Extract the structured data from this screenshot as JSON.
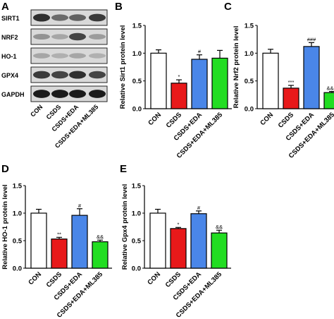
{
  "panel_letters": [
    "A",
    "B",
    "C",
    "D",
    "E"
  ],
  "blot": {
    "labels": [
      "SIRT1",
      "NRF2",
      "HO-1",
      "GPX4",
      "GAPDH"
    ],
    "lanes": [
      "CON",
      "CSDS",
      "CSDS+EDA",
      "CSDS+EDA+ML385"
    ]
  },
  "colors": {
    "CON": "#ffffff",
    "CSDS": "#e8191a",
    "CSDS+EDA": "#4a86e8",
    "CSDS+EDA+ML385": "#22dd22"
  },
  "chart_data": [
    {
      "panel": "B",
      "type": "bar",
      "categories": [
        "CON",
        "CSDS",
        "CSDS+EDA",
        "CSDS+EDA+ML385"
      ],
      "values": [
        1.0,
        0.46,
        0.89,
        0.91
      ],
      "errors": [
        0.06,
        0.06,
        0.08,
        0.14
      ],
      "annotations": [
        "",
        "*",
        "#",
        ""
      ],
      "xlabel": "",
      "ylabel": "Relative Sirt1 protein level",
      "ylim": [
        0.0,
        1.5
      ],
      "yticks": [
        "0.0",
        "0.5",
        "1.0",
        "1.5"
      ]
    },
    {
      "panel": "C",
      "type": "bar",
      "categories": [
        "CON",
        "CSDS",
        "CSDS+EDA",
        "CSDS+EDA+ML385"
      ],
      "values": [
        1.0,
        0.37,
        1.12,
        0.29
      ],
      "errors": [
        0.07,
        0.05,
        0.07,
        0.02
      ],
      "annotations": [
        "",
        "***",
        "###",
        "&&&"
      ],
      "xlabel": "",
      "ylabel": "Relative Nrf2 protein level",
      "ylim": [
        0.0,
        1.5
      ],
      "yticks": [
        "0.0",
        "0.5",
        "1.0",
        "1.5"
      ]
    },
    {
      "panel": "D",
      "type": "bar",
      "categories": [
        "CON",
        "CSDS",
        "CSDS+EDA",
        "CSDS+EDA+ML385"
      ],
      "values": [
        1.0,
        0.53,
        0.96,
        0.48
      ],
      "errors": [
        0.07,
        0.03,
        0.12,
        0.03
      ],
      "annotations": [
        "",
        "**",
        "#",
        "&&"
      ],
      "xlabel": "",
      "ylabel": "Relative HO-1 protein level",
      "ylim": [
        0.0,
        1.5
      ],
      "yticks": [
        "0.0",
        "0.5",
        "1.0",
        "1.5"
      ]
    },
    {
      "panel": "E",
      "type": "bar",
      "categories": [
        "CON",
        "CSDS",
        "CSDS+EDA",
        "CSDS+EDA+ML385"
      ],
      "values": [
        1.0,
        0.72,
        0.99,
        0.64
      ],
      "errors": [
        0.07,
        0.02,
        0.05,
        0.05
      ],
      "annotations": [
        "",
        "*",
        "#",
        "&&"
      ],
      "xlabel": "",
      "ylabel": "Relative Gpx4 protein level",
      "ylim": [
        0.0,
        1.5
      ],
      "yticks": [
        "0.0",
        "0.5",
        "1.0",
        "1.5"
      ]
    }
  ]
}
